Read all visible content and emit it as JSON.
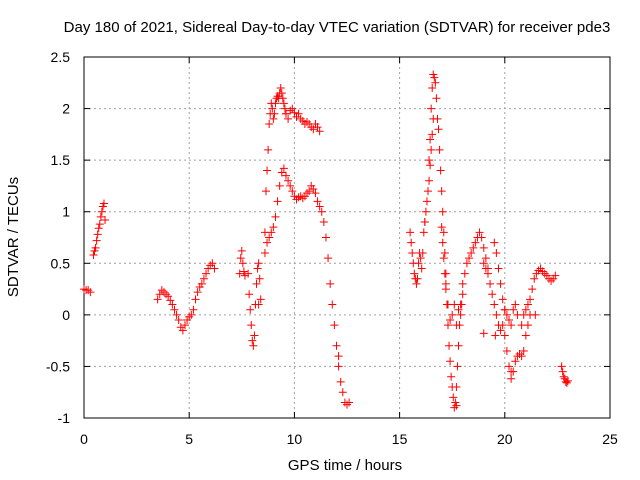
{
  "chart_data": {
    "type": "scatter",
    "title": "Day 180 of 2021, Sidereal Day-to-day VTEC variation (SDTVAR) for receiver pde3",
    "xlabel": "GPS time / hours",
    "ylabel": "SDTVAR / TECUs",
    "xlim": [
      0,
      25
    ],
    "ylim": [
      -1,
      2.5
    ],
    "xticks": [
      0,
      5,
      10,
      15,
      20,
      25
    ],
    "xtick_labels": [
      "0",
      "5",
      "10",
      "15",
      "20",
      "25"
    ],
    "yticks": [
      -1,
      -0.5,
      0,
      0.5,
      1,
      1.5,
      2,
      2.5
    ],
    "ytick_labels": [
      "-1",
      "-0.5",
      "0",
      "0.5",
      "1",
      "1.5",
      "2",
      "2.5"
    ],
    "grid": true,
    "marker": "plus",
    "color": "#ff0000",
    "series": [
      {
        "name": "seg-00-01",
        "x": [
          0.0,
          0.1,
          0.2,
          0.3
        ],
        "y": [
          0.25,
          0.24,
          0.24,
          0.22
        ]
      },
      {
        "name": "seg-05-1",
        "x": [
          0.45,
          0.5,
          0.55,
          0.6,
          0.65,
          0.7,
          0.75,
          0.8,
          0.85,
          0.9,
          0.95,
          1.0
        ],
        "y": [
          0.58,
          0.62,
          0.65,
          0.72,
          0.78,
          0.84,
          0.88,
          0.95,
          1.0,
          1.05,
          1.08,
          0.92
        ]
      },
      {
        "name": "seg-35-62",
        "x": [
          3.5,
          3.6,
          3.7,
          3.8,
          3.9,
          4.0,
          4.1,
          4.2,
          4.3,
          4.4,
          4.5,
          4.6,
          4.7,
          4.8,
          4.9,
          5.0,
          5.1,
          5.2,
          5.3,
          5.4,
          5.5,
          5.6,
          5.7,
          5.8,
          5.9,
          6.0,
          6.1,
          6.2
        ],
        "y": [
          0.15,
          0.2,
          0.24,
          0.22,
          0.2,
          0.18,
          0.14,
          0.1,
          0.05,
          0.0,
          -0.05,
          -0.12,
          -0.15,
          -0.1,
          -0.05,
          -0.02,
          0.0,
          0.05,
          0.15,
          0.22,
          0.27,
          0.3,
          0.35,
          0.4,
          0.45,
          0.48,
          0.5,
          0.45
        ]
      },
      {
        "name": "seg-74-76",
        "x": [
          7.4,
          7.45,
          7.5,
          7.55,
          7.6,
          7.65
        ],
        "y": [
          0.4,
          0.55,
          0.62,
          0.5,
          0.42,
          0.38
        ]
      },
      {
        "name": "seg-78-84",
        "x": [
          7.8,
          7.85,
          7.9,
          7.95,
          8.0,
          8.05,
          8.1,
          8.15,
          8.2,
          8.25,
          8.3,
          8.35,
          8.4
        ],
        "y": [
          0.4,
          0.2,
          0.05,
          -0.1,
          -0.25,
          -0.3,
          -0.2,
          0.1,
          0.3,
          0.45,
          0.5,
          0.35,
          0.15
        ]
      },
      {
        "name": "seg-86-96",
        "x": [
          8.6,
          8.65,
          8.7,
          8.75,
          8.8,
          8.85,
          8.9,
          8.95,
          9.0,
          9.05,
          9.1,
          9.15,
          9.2,
          9.25,
          9.3,
          9.35,
          9.4,
          9.45,
          9.5,
          9.55,
          9.6
        ],
        "y": [
          0.8,
          1.2,
          1.4,
          1.6,
          1.85,
          1.95,
          2.05,
          2.0,
          1.9,
          1.95,
          2.05,
          2.1,
          2.12,
          2.1,
          2.15,
          2.2,
          2.15,
          2.1,
          2.05,
          2.0,
          1.95
        ]
      },
      {
        "name": "seg-96-112",
        "x": [
          9.6,
          9.7,
          9.8,
          9.9,
          10.0,
          10.1,
          10.2,
          10.3,
          10.4,
          10.5,
          10.6,
          10.7,
          10.8,
          10.9,
          11.0,
          11.1,
          11.2
        ],
        "y": [
          1.95,
          1.9,
          1.98,
          2.0,
          1.96,
          1.92,
          1.95,
          1.9,
          1.88,
          1.85,
          1.87,
          1.85,
          1.82,
          1.8,
          1.85,
          1.82,
          1.78
        ]
      },
      {
        "name": "seg-86-126",
        "x": [
          8.6,
          8.7,
          8.8,
          8.9,
          9.0,
          9.1,
          9.2,
          9.3,
          9.4,
          9.5,
          9.6,
          9.7,
          9.8,
          9.9,
          10.0,
          10.1,
          10.2,
          10.3,
          10.4,
          10.5,
          10.6,
          10.7,
          10.8,
          10.9,
          11.0,
          11.1,
          11.2,
          11.3,
          11.4,
          11.5,
          11.6,
          11.7,
          11.8,
          11.9,
          12.0,
          12.1,
          12.2,
          12.3,
          12.4,
          12.5,
          12.6
        ],
        "y": [
          0.6,
          0.7,
          0.75,
          0.8,
          0.85,
          0.95,
          1.1,
          1.25,
          1.38,
          1.42,
          1.35,
          1.3,
          1.25,
          1.2,
          1.15,
          1.12,
          1.14,
          1.15,
          1.13,
          1.15,
          1.18,
          1.2,
          1.25,
          1.22,
          1.18,
          1.1,
          1.05,
          1.0,
          0.9,
          0.75,
          0.55,
          0.3,
          0.1,
          -0.1,
          -0.3,
          -0.5,
          -0.65,
          -0.75,
          -0.85,
          -0.87,
          -0.85
        ]
      },
      {
        "name": "seg-155-166",
        "x": [
          15.5,
          15.55,
          15.6,
          15.65,
          15.7,
          15.75,
          15.8,
          15.85,
          15.9,
          15.95,
          16.0,
          16.05,
          16.1,
          16.15,
          16.2,
          16.25,
          16.3,
          16.35,
          16.4,
          16.45,
          16.5,
          16.55,
          16.6
        ],
        "y": [
          0.8,
          0.7,
          0.6,
          0.5,
          0.4,
          0.35,
          0.3,
          0.35,
          0.5,
          0.6,
          0.55,
          0.45,
          0.6,
          0.8,
          0.9,
          1.0,
          1.1,
          1.2,
          1.3,
          1.45,
          1.6,
          1.75,
          1.9
        ]
      },
      {
        "name": "seg-164-172",
        "x": [
          16.4,
          16.45,
          16.5,
          16.55,
          16.6,
          16.65,
          16.7,
          16.75,
          16.8,
          16.85,
          16.9,
          16.95,
          17.0,
          17.05,
          17.1,
          17.15,
          17.2
        ],
        "y": [
          1.5,
          1.7,
          2.0,
          2.2,
          2.33,
          2.3,
          2.25,
          2.1,
          1.9,
          1.8,
          1.6,
          1.4,
          1.2,
          1.0,
          0.8,
          0.6,
          0.4
        ]
      },
      {
        "name": "seg-170-180",
        "x": [
          17.0,
          17.05,
          17.1,
          17.15,
          17.2,
          17.25,
          17.3,
          17.35,
          17.4,
          17.45,
          17.5,
          17.55,
          17.6,
          17.65,
          17.7,
          17.75,
          17.8,
          17.85,
          17.9,
          17.95,
          18.0
        ],
        "y": [
          0.85,
          0.7,
          0.55,
          0.4,
          0.25,
          0.1,
          -0.1,
          -0.3,
          -0.45,
          -0.6,
          -0.7,
          -0.8,
          -0.9,
          -0.85,
          -0.7,
          -0.5,
          -0.3,
          -0.1,
          0.0,
          0.1,
          0.2
        ]
      },
      {
        "name": "seg-172-192",
        "x": [
          17.2,
          17.3,
          17.4,
          17.5,
          17.6,
          17.7,
          17.8,
          17.9,
          18.0,
          18.1,
          18.2,
          18.3,
          18.4,
          18.5,
          18.6,
          18.7,
          18.8,
          18.9,
          19.0,
          19.1,
          19.2
        ],
        "y": [
          0.3,
          0.1,
          -0.05,
          0.0,
          0.1,
          -0.1,
          0.05,
          0.1,
          0.3,
          0.4,
          0.5,
          0.55,
          0.6,
          0.65,
          0.7,
          0.75,
          0.8,
          0.75,
          0.65,
          0.55,
          0.45
        ]
      },
      {
        "name": "seg-190-200",
        "x": [
          19.0,
          19.1,
          19.2,
          19.3,
          19.4,
          19.5,
          19.6,
          19.7,
          19.8,
          19.9,
          20.0
        ],
        "y": [
          0.5,
          0.45,
          0.4,
          0.3,
          0.2,
          0.1,
          0.0,
          -0.1,
          -0.15,
          -0.1,
          0.05
        ]
      },
      {
        "name": "seg-195-206",
        "x": [
          19.5,
          19.6,
          19.7,
          19.8,
          19.9,
          20.0,
          20.1,
          20.2,
          20.3,
          20.4,
          20.5,
          20.6
        ],
        "y": [
          0.7,
          0.6,
          0.45,
          0.3,
          0.15,
          0.05,
          0.0,
          -0.05,
          -0.1,
          0.05,
          0.1,
          0.0
        ]
      },
      {
        "name": "seg-200-212",
        "x": [
          20.0,
          20.1,
          20.2,
          20.3,
          20.4,
          20.5,
          20.6,
          20.7,
          20.8,
          20.9,
          21.0,
          21.1,
          21.2
        ],
        "y": [
          -0.2,
          -0.35,
          -0.5,
          -0.62,
          -0.55,
          -0.45,
          -0.4,
          -0.38,
          -0.4,
          -0.35,
          -0.2,
          -0.1,
          0.0
        ]
      },
      {
        "name": "seg-208-224",
        "x": [
          20.8,
          20.9,
          21.0,
          21.1,
          21.2,
          21.3,
          21.4,
          21.5,
          21.6,
          21.7,
          21.8,
          21.9,
          22.0,
          22.1,
          22.2,
          22.3,
          22.4
        ],
        "y": [
          -0.1,
          0.0,
          0.05,
          0.1,
          0.15,
          0.25,
          0.35,
          0.4,
          0.43,
          0.45,
          0.42,
          0.4,
          0.38,
          0.35,
          0.33,
          0.35,
          0.38
        ]
      },
      {
        "name": "seg-227-230",
        "x": [
          22.7,
          22.75,
          22.8,
          22.85,
          22.9,
          22.95,
          23.0
        ],
        "y": [
          -0.5,
          -0.55,
          -0.6,
          -0.62,
          -0.65,
          -0.66,
          -0.64
        ]
      },
      {
        "name": "outliers",
        "x": [
          8.3,
          12.1,
          16.2,
          17.7,
          19.0,
          19.55,
          20.3,
          21.45
        ],
        "y": [
          0.1,
          -0.4,
          0.9,
          -0.88,
          -0.18,
          -0.2,
          -0.55,
          0.0
        ]
      }
    ]
  }
}
